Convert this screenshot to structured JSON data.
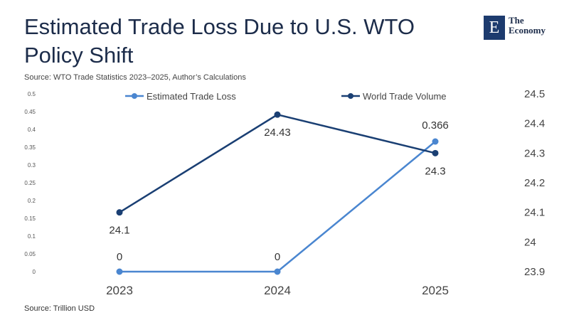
{
  "title": "Estimated Trade Loss Due to U.S. WTO Policy Shift",
  "subtitle": "Source:  WTO Trade Statistics 2023–2025, Author’s Calculations",
  "source": "Source:  Trillion USD",
  "logo": {
    "letter": "E",
    "line1": "The",
    "line2": "Economy"
  },
  "colors": {
    "loss": "#4a86d0",
    "volume": "#1a3f73"
  },
  "chart_data": {
    "type": "line",
    "categories": [
      "2023",
      "2024",
      "2025"
    ],
    "series": [
      {
        "name": "Estimated Trade Loss",
        "axis": "left",
        "values": [
          0,
          0,
          0.366
        ],
        "labels": [
          "0",
          "0",
          "0.366"
        ]
      },
      {
        "name": "World Trade Volume",
        "axis": "right",
        "values": [
          24.1,
          24.43,
          24.3
        ],
        "labels": [
          "24.1",
          "24.43",
          "24.3"
        ]
      }
    ],
    "left_axis": {
      "ylim": [
        0,
        0.5
      ],
      "ticks": [
        "0",
        "0.05",
        "0.1",
        "0.15",
        "0.2",
        "0.25",
        "0.3",
        "0.35",
        "0.4",
        "0.45",
        "0.5"
      ]
    },
    "right_axis": {
      "ylim": [
        23.9,
        24.5
      ],
      "ticks": [
        "23.9",
        "24",
        "24.1",
        "24.2",
        "24.3",
        "24.4",
        "24.5"
      ]
    },
    "legend": "top"
  }
}
